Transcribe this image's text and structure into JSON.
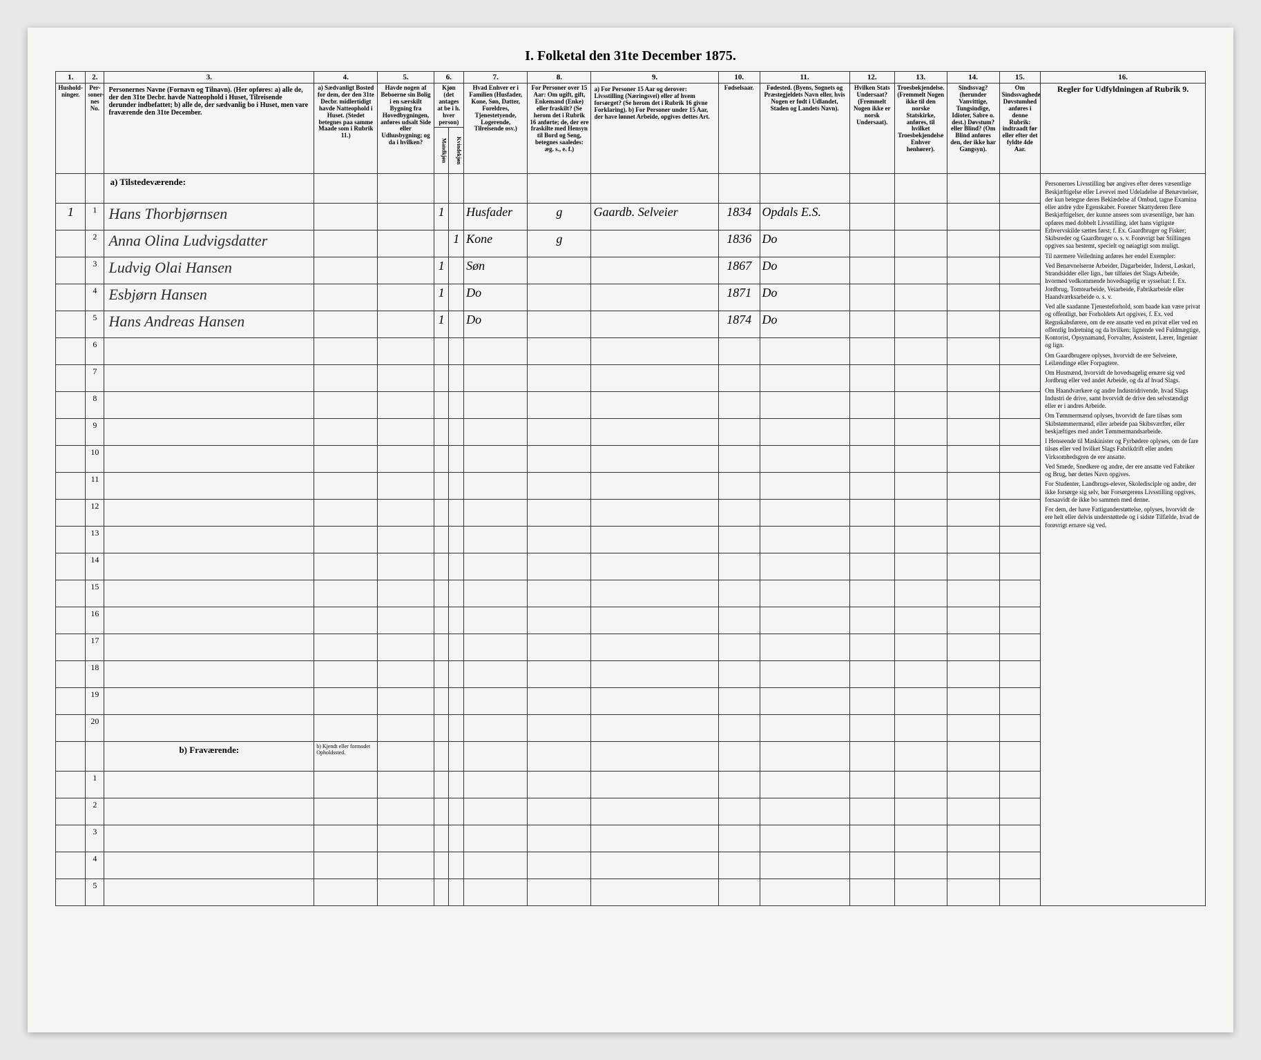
{
  "title": "I. Folketal den 31te December 1875.",
  "columns": {
    "c1": "1.",
    "c2": "2.",
    "c3": "3.",
    "c4": "4.",
    "c5": "5.",
    "c6": "6.",
    "c7": "7.",
    "c8": "8.",
    "c9": "9.",
    "c10": "10.",
    "c11": "11.",
    "c12": "12.",
    "c13": "13.",
    "c14": "14.",
    "c15": "15.",
    "c16": "16."
  },
  "headers": {
    "h1": "Hushold-ninger.",
    "h2": "Per-soner-nes No.",
    "h3": "Personernes Navne (Fornavn og Tilnavn).\n(Her opføres:\na) alle de, der den 31te Decbr. havde Natteophold i Huset, Tilreisende derunder indbefattet;\nb) alle de, der sædvanlig bo i Huset, men vare fraværende den 31te December.",
    "h4": "a) Sædvanligt Bosted for dem, der den 31te Decbr. midlertidigt havde Natteophold i Huset. (Stedet betegnes paa samme Maade som i Rubrik 11.)",
    "h5": "Havde nogen af Beboerne sin Bolig i en særskilt Bygning fra Hovedbygningen, anføres udsalt Side eller Udhusbygning; og da i hvilken?",
    "h6": "Kjøn (det antages at be i h. hver person)",
    "h6a": "Mandkjøn",
    "h6b": "Kvindekjøn",
    "h7": "Hvad Enhver er i Familien (Husfader, Kone, Søn, Datter, Foreldres, Tjenestetyende, Logerende, Tilreisende osv.)",
    "h8": "For Personer over 15 Aar: Om ugift, gift, Enkemand (Enke) eller fraskilt? (Se herom det i Rubrik 16 anførte; de, der ere fraskilte med Hensyn til Bord og Seng, betegnes saaledes: æg. s., e. f.)",
    "h9": "a) For Personer 15 Aar og derover: Livsstilling (Næringsvei) eller af hvem forsørget? (Se herom det i Rubrik 16 givne Forklaring).\nb) For Personer under 15 Aar, der have lønnet Arbeide, opgives dettes Art.",
    "h10": "Fødselsaar.",
    "h11": "Fødested.\n(Byens, Sognets og Præstegjeldets Navn eller, hvis Nogen er født i Udlandet, Staden og Landets Navn).",
    "h12": "Hvilken Stats Undersaat?\n(Fremmelt Nogen ikke er norsk Undersaat).",
    "h13": "Troesbekjendelse.\n(Fremmelt Nogen ikke til den norske Statskirke, anføres, til hvilket Troesbekjendelse Enhver henhører).",
    "h14": "Sindssvag? (herunder Vanvittige, Tungsindige, Idioter, Sabre o. dest.) Døvstum? eller Blind? (Om Blind anføres den, der ikke har Gangsyn).",
    "h15": "Om Sindssvagheden Døvstumhed anføres i denne Rubrik: indtraadt før eller efter det fyldte 4de Aar.",
    "h16": "Regler for Udfyldningen af Rubrik 9."
  },
  "section_a": "a) Tilstedeværende:",
  "section_b": "b) Fraværende:",
  "section_b_note": "b) Kjendt eller formodet Opholdssted.",
  "rows": [
    {
      "n": "1",
      "name": "Hans Thorbjørnsen",
      "c6a": "1",
      "c6b": "",
      "c7": "Husfader",
      "c8": "g",
      "c9": "Gaardb. Selveier",
      "c10": "1834",
      "c11": "Opdals E.S."
    },
    {
      "n": "2",
      "name": "Anna Olina Ludvigsdatter",
      "c6a": "",
      "c6b": "1",
      "c7": "Kone",
      "c8": "g",
      "c9": "",
      "c10": "1836",
      "c11": "Do"
    },
    {
      "n": "3",
      "name": "Ludvig Olai Hansen",
      "c6a": "1",
      "c6b": "",
      "c7": "Søn",
      "c8": "",
      "c9": "",
      "c10": "1867",
      "c11": "Do"
    },
    {
      "n": "4",
      "name": "Esbjørn Hansen",
      "c6a": "1",
      "c6b": "",
      "c7": "Do",
      "c8": "",
      "c9": "",
      "c10": "1871",
      "c11": "Do"
    },
    {
      "n": "5",
      "name": "Hans Andreas Hansen",
      "c6a": "1",
      "c6b": "",
      "c7": "Do",
      "c8": "",
      "c9": "",
      "c10": "1874",
      "c11": "Do"
    }
  ],
  "rules": {
    "p1": "Personernes Livsstilling bør angives efter deres væsentlige Beskjæftigelse eller Levevei med Udeladelse af Benævnelser, der kun betegne deres Beklædelse af Ombud, tagne Examina eller andre ydre Egenskaber. Forener Skattyderen flere Beskjæftigelser, der kunne ansees som uvæsentlige, bør han opføres med dobbelt Livsstilling, idet hans vigtigste Erhvervskilde sættes først; f. Ex. Gaardbruger og Fisker; Skibsreder og Gaardbruger o. s. v. Forøvrigt bør Stillingen opgives saa bestemt, specielt og nøiagtigt som muligt.",
    "p2": "Til nærmere Veiledning anføres her endel Exempler:",
    "p3": "Ved Benævnelserne Arbeider, Dagarbeider, Inderst, Løskarl, Strandsidder eller lign., bør tilføies det Slags Arbeide, hvormed vedkommende hovedsagelig er sysselsat: f. Ex. Jordbrug, Tomtearbeide, Veiarbeide, Fabrikarbeide eller Haandværksarbeide o. s. v.",
    "p4": "Ved alle saadanne Tjenesteforhold, som baade kan være privat og offentligt, bør Forholdets Art opgives, f. Ex. ved Regnskabsførere, om de ere ansatte ved en privat eller ved en offentlig Indretning og da hvilken; lignende ved Fuldmægtige, Kontorist, Opsynamand, Forvalter, Assistent, Lærer, Ingeniør og lign.",
    "p5": "Om Gaardbrugere oplyses, hvorvidt de ere Selveiere, Leilændinge eller Forpagtere.",
    "p6": "Om Husmænd, hvorvidt de hovedsagelig ernære sig ved Jordbrug eller ved andet Arbeide, og da af hvad Slags.",
    "p7": "Om Haandværkere og andre Industridrivende, hvad Slags Industri de drive, samt hvorvidt de drive den selvstændigt eller er i andres Arbeide.",
    "p8": "Om Tømmermænd oplyses, hvorvidt de fare tilsøs som Skibstømmermænd, eller arbeide paa Skibsværfter, eller beskjæftiges med andet Tømmermandsarbeide.",
    "p9": "I Henseende til Maskinister og Fyrbødere oplyses, om de fare tilsøs eller ved hvilket Slags Fabrikdrift eller anden Virksomhedsgren de ere ansatte.",
    "p10": "Ved Smede, Snedkere og andre, der ere ansatte ved Fabriker og Brug, bør dettes Navn opgives.",
    "p11": "For Studenter, Landbrugs-elever, Skoledisciple og andre, der ikke forsørge sig selv, bør Forsørgerens Livsstilling opgives, forsaavidt de ikke bo sammen med denne.",
    "p12": "For dem, der have Fattigunderstøttelse, oplyses, hvorvidt de ere helt eller delvis understøttede og i sidste Tilfælde, hvad de forøvrigt ernære sig ved."
  },
  "empty_rows_a": [
    "6",
    "7",
    "8",
    "9",
    "10",
    "11",
    "12",
    "13",
    "14",
    "15",
    "16",
    "17",
    "18",
    "19",
    "20"
  ],
  "empty_rows_b": [
    "1",
    "2",
    "3",
    "4",
    "5"
  ],
  "first_col_num": "1",
  "colors": {
    "paper": "#f5f5f2",
    "ink": "#2a2a2a",
    "border": "#333333",
    "page_bg": "#e8e8e8"
  }
}
